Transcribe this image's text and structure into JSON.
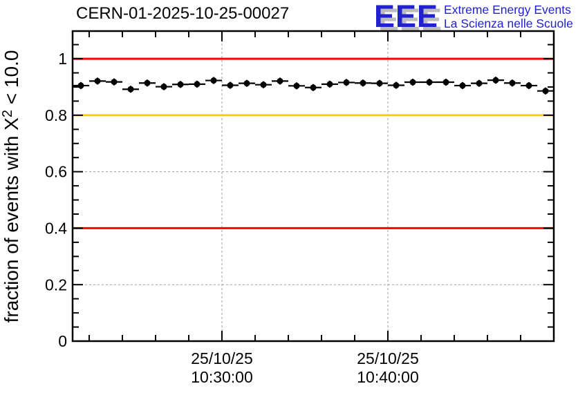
{
  "header": {
    "title": "CERN-01-2025-10-25-00027",
    "logo": {
      "letters": "EEE",
      "line1": "Extreme Energy Events",
      "line2": "La Scienza nelle Scuole",
      "blue": "#2222cc",
      "shadow_gray": "#bcbcbc"
    }
  },
  "chart_data": {
    "type": "scatter",
    "title": "CERN-01-2025-10-25-00027",
    "ylabel": "fraction of events with X^2 < 10.0",
    "ylabel_parts": {
      "prefix": "fraction of events with X",
      "sup": "2",
      "suffix": " < 10.0"
    },
    "xlabel": "",
    "ylim": [
      0,
      1.098
    ],
    "grid": {
      "style": "dashed",
      "color": "#9c9c9c"
    },
    "legend": "none",
    "y_ticks": [
      {
        "v": 0.0,
        "label": "0"
      },
      {
        "v": 0.2,
        "label": "0.2"
      },
      {
        "v": 0.4,
        "label": "0.4"
      },
      {
        "v": 0.6,
        "label": "0.6"
      },
      {
        "v": 0.8,
        "label": "0.8"
      },
      {
        "v": 1.0,
        "label": "1"
      }
    ],
    "y_minor_step": 0.05,
    "x_axis": {
      "start_time": "10:21:00",
      "end_time": "10:50:00",
      "minor_step_seconds": 120,
      "minor_phase_seconds": 60,
      "major_ticks": [
        {
          "date": "25/10/25",
          "time": "10:30:00"
        },
        {
          "date": "25/10/25",
          "time": "10:40:00"
        }
      ]
    },
    "reference_lines": [
      {
        "y": 1.0,
        "color": "#ff0000"
      },
      {
        "y": 0.8,
        "color": "#ffcc00"
      },
      {
        "y": 0.4,
        "color": "#ff0000"
      }
    ],
    "series": [
      {
        "name": "fraction of events with chi2 < 10 per minute",
        "marker": "filled-circle",
        "color": "#000000",
        "bin_seconds": 60,
        "points": [
          {
            "time": "10:21:30",
            "y": 0.905
          },
          {
            "time": "10:22:30",
            "y": 0.921
          },
          {
            "time": "10:23:30",
            "y": 0.918
          },
          {
            "time": "10:24:30",
            "y": 0.892
          },
          {
            "time": "10:25:30",
            "y": 0.914
          },
          {
            "time": "10:26:30",
            "y": 0.901
          },
          {
            "time": "10:27:30",
            "y": 0.909
          },
          {
            "time": "10:28:30",
            "y": 0.91
          },
          {
            "time": "10:29:30",
            "y": 0.923
          },
          {
            "time": "10:30:30",
            "y": 0.906
          },
          {
            "time": "10:31:30",
            "y": 0.913
          },
          {
            "time": "10:32:30",
            "y": 0.908
          },
          {
            "time": "10:33:30",
            "y": 0.921
          },
          {
            "time": "10:34:30",
            "y": 0.904
          },
          {
            "time": "10:35:30",
            "y": 0.898
          },
          {
            "time": "10:36:30",
            "y": 0.91
          },
          {
            "time": "10:37:30",
            "y": 0.916
          },
          {
            "time": "10:38:30",
            "y": 0.914
          },
          {
            "time": "10:39:30",
            "y": 0.913
          },
          {
            "time": "10:40:30",
            "y": 0.906
          },
          {
            "time": "10:41:30",
            "y": 0.917
          },
          {
            "time": "10:42:30",
            "y": 0.917
          },
          {
            "time": "10:43:30",
            "y": 0.917
          },
          {
            "time": "10:44:30",
            "y": 0.905
          },
          {
            "time": "10:45:30",
            "y": 0.913
          },
          {
            "time": "10:46:30",
            "y": 0.924
          },
          {
            "time": "10:47:30",
            "y": 0.914
          },
          {
            "time": "10:48:30",
            "y": 0.905
          },
          {
            "time": "10:49:30",
            "y": 0.886
          }
        ]
      }
    ]
  }
}
